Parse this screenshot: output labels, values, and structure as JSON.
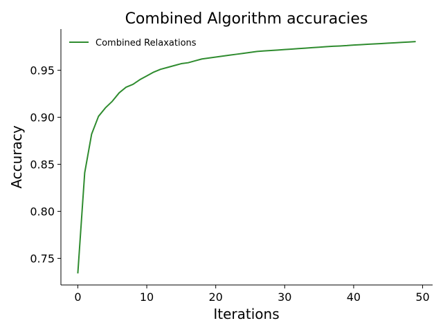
{
  "chart_data": {
    "type": "line",
    "title": "Combined Algorithm accuracies",
    "xlabel": "Iterations",
    "ylabel": "Accuracy",
    "xlim": [
      -2.45,
      51.45
    ],
    "ylim": [
      0.7217,
      0.9938
    ],
    "xticks": [
      0,
      10,
      20,
      30,
      40,
      50
    ],
    "xtick_labels": [
      "0",
      "10",
      "20",
      "30",
      "40",
      "50"
    ],
    "yticks": [
      0.75,
      0.8,
      0.85,
      0.9,
      0.95
    ],
    "ytick_labels": [
      "0.75",
      "0.80",
      "0.85",
      "0.90",
      "0.95"
    ],
    "grid": false,
    "legend_position": "upper-left",
    "series": [
      {
        "name": "Combined Relaxations",
        "color": "#2e8b2e",
        "x": [
          0,
          1,
          2,
          3,
          4,
          5,
          6,
          7,
          8,
          9,
          10,
          11,
          12,
          13,
          14,
          15,
          16,
          17,
          18,
          19,
          20,
          21,
          22,
          23,
          24,
          25,
          26,
          27,
          28,
          29,
          30,
          31,
          32,
          33,
          34,
          35,
          36,
          37,
          38,
          39,
          40,
          41,
          42,
          43,
          44,
          45,
          46,
          47,
          48,
          49
        ],
        "y": [
          0.734,
          0.841,
          0.882,
          0.901,
          0.91,
          0.917,
          0.926,
          0.932,
          0.935,
          0.94,
          0.944,
          0.948,
          0.951,
          0.953,
          0.955,
          0.957,
          0.958,
          0.96,
          0.962,
          0.963,
          0.964,
          0.965,
          0.966,
          0.967,
          0.968,
          0.969,
          0.97,
          0.9705,
          0.971,
          0.9715,
          0.972,
          0.9725,
          0.973,
          0.9735,
          0.974,
          0.9745,
          0.975,
          0.9755,
          0.9758,
          0.9762,
          0.9768,
          0.9772,
          0.9776,
          0.978,
          0.9784,
          0.9788,
          0.9792,
          0.9796,
          0.98,
          0.9805
        ]
      }
    ]
  }
}
